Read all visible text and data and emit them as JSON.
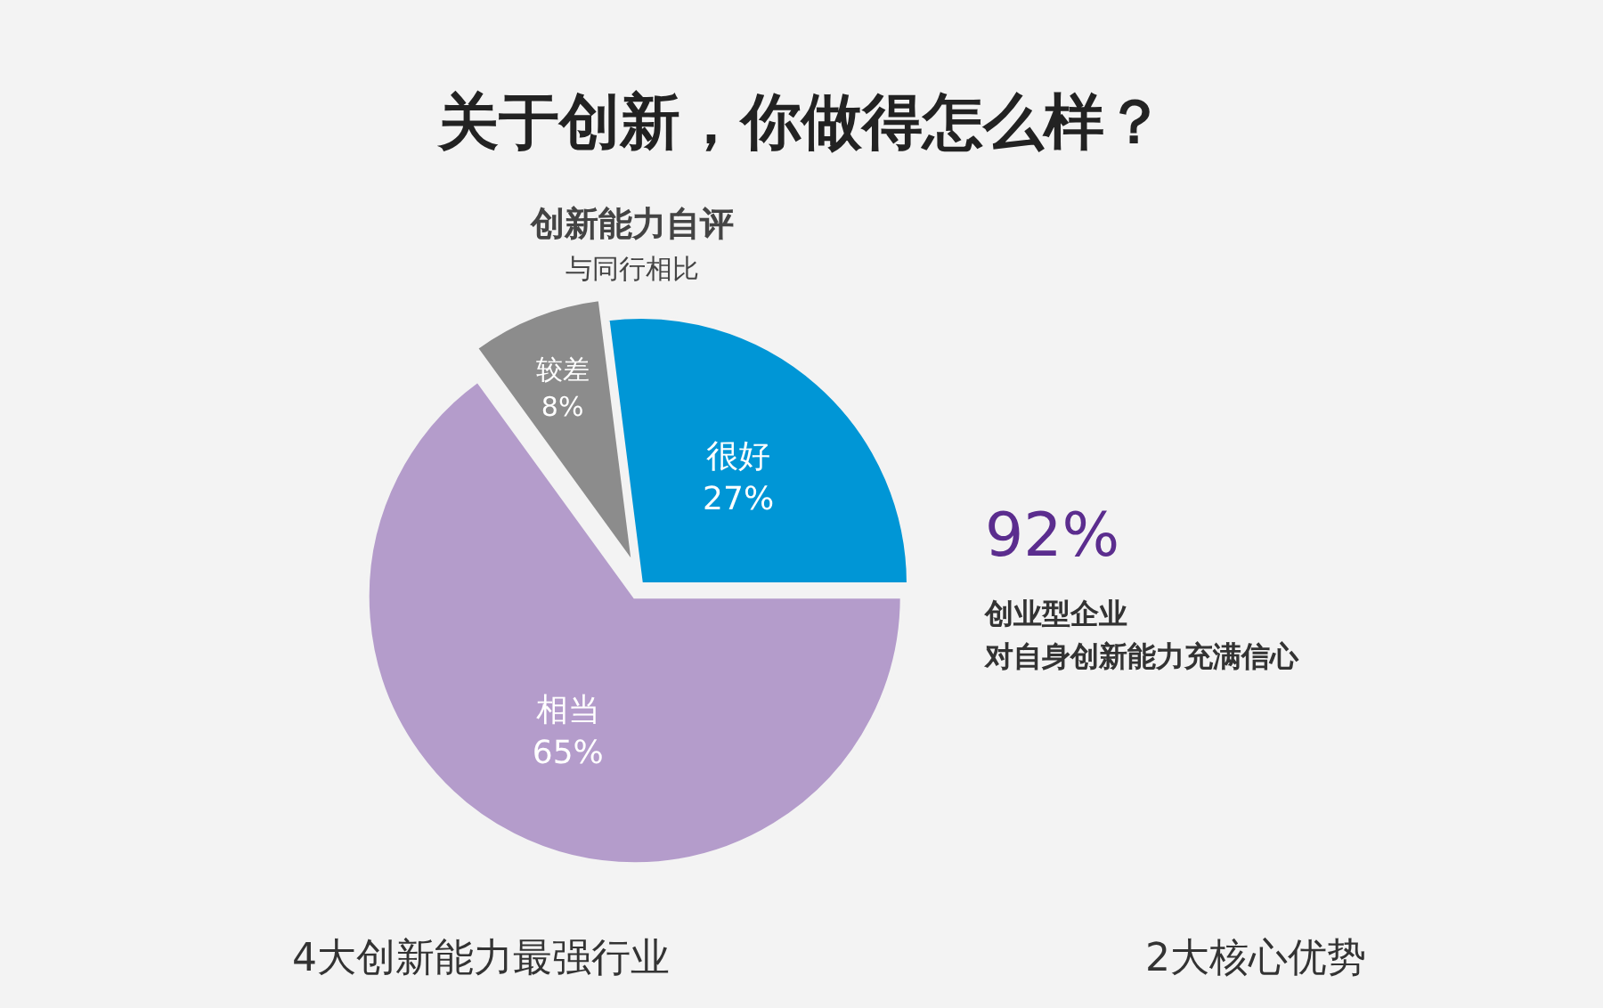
{
  "chart_data": {
    "type": "pie",
    "title": "关于创新，你做得怎么样？",
    "subtitle": "创新能力自评",
    "categories": [
      "很好",
      "相当",
      "较差"
    ],
    "values": [
      27,
      65,
      8
    ],
    "colors": [
      "#0096d6",
      "#b49ccb",
      "#8c8c8c"
    ],
    "value_labels": [
      "27%",
      "65%",
      "8%"
    ],
    "annotations": [
      "与同行相比",
      "92%",
      "创业型企业",
      "对自身创新能力充满信心",
      "4大创新能力最强行业",
      "2大核心优势"
    ]
  }
}
